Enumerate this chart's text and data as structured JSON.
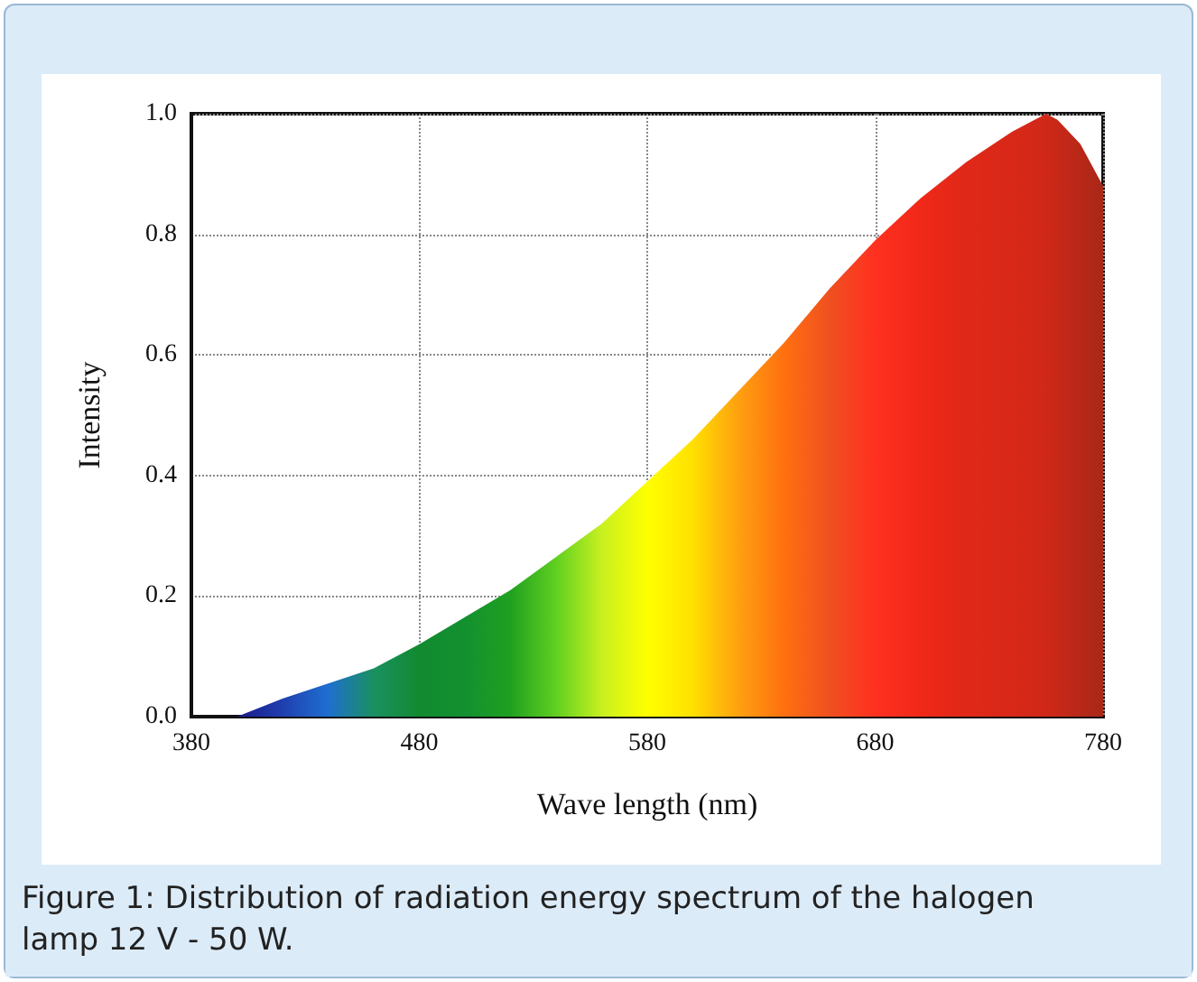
{
  "chart_data": {
    "type": "area",
    "xlabel": "Wave length (nm)",
    "ylabel": "Intensity",
    "annotations": [
      "Figure 1: Distribution of radiation energy spectrum of the halogen lamp 12 V - 50 W."
    ],
    "x": [
      380,
      400,
      420,
      440,
      460,
      480,
      500,
      520,
      540,
      560,
      580,
      600,
      620,
      640,
      660,
      680,
      700,
      720,
      740,
      755,
      760,
      770,
      780
    ],
    "values": [
      0,
      0,
      0.03,
      0.055,
      0.08,
      0.12,
      0.165,
      0.21,
      0.265,
      0.32,
      0.39,
      0.46,
      0.54,
      0.62,
      0.71,
      0.79,
      0.86,
      0.92,
      0.97,
      1.0,
      0.99,
      0.95,
      0.88
    ],
    "colors": [
      "#1a1a7a",
      "#1a1a8a",
      "#1f3fb0",
      "#1f6fd0",
      "#1a9060",
      "#128a30",
      "#139030",
      "#20a020",
      "#60d020",
      "#c8f020",
      "#ffff00",
      "#ffe000",
      "#ffa010",
      "#ff7010",
      "#f05020",
      "#ff3020",
      "#f02818",
      "#e02818",
      "#d82818",
      "#d02818",
      "#c82818",
      "#b82818",
      "#a82818"
    ],
    "xlim": [
      380,
      780
    ],
    "xticks": [
      380,
      480,
      580,
      680,
      780
    ],
    "ylim": [
      0,
      1
    ],
    "yticks": [
      {
        "value": 0,
        "label": "0.0"
      },
      {
        "value": 0.2,
        "label": "0.2"
      },
      {
        "value": 0.4,
        "label": "0.4"
      },
      {
        "value": 0.6,
        "label": "0.6"
      },
      {
        "value": 0.8,
        "label": "0.8"
      },
      {
        "value": 1,
        "label": "1.0"
      }
    ],
    "grid": true,
    "marker": "none"
  }
}
